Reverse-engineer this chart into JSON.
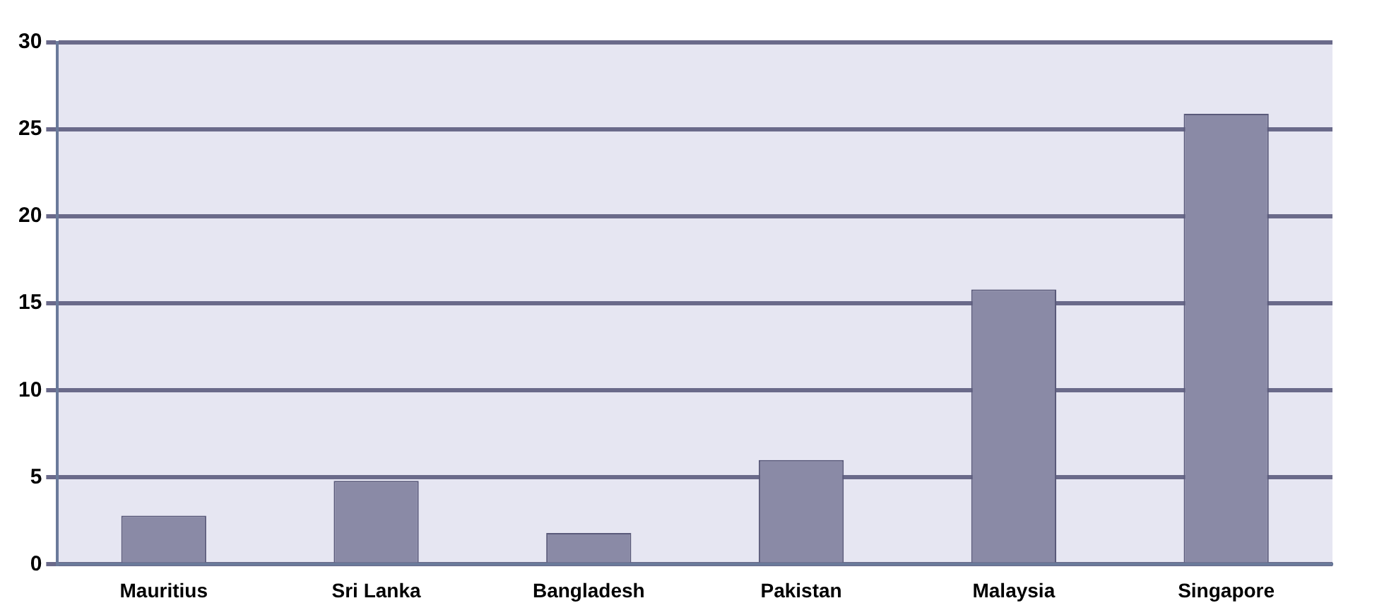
{
  "chart_data": {
    "type": "bar",
    "categories": [
      "Mauritius",
      "Sri Lanka",
      "Bangladesh",
      "Pakistan",
      "Malaysia",
      "Singapore"
    ],
    "values": [
      2.8,
      4.8,
      1.8,
      6,
      15.8,
      25.9
    ],
    "color": "#8a8aa6",
    "ylim": [
      0,
      30
    ],
    "yticks": [
      0,
      5,
      10,
      15,
      20,
      25,
      30
    ],
    "grid": "y",
    "legend": false
  }
}
